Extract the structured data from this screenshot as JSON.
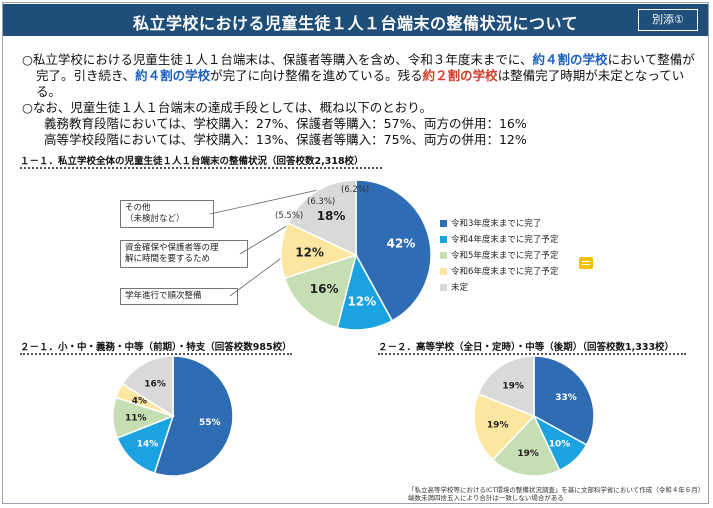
{
  "header": {
    "title": "私立学校における児童生徒１人１台端末の整備状況について",
    "badge": "別添①"
  },
  "summary": {
    "p1_a": "○私立学校における児童生徒１人１台端末は、保護者等購入を含め、令和３年度末までに、",
    "p1_b": "約４割の学校",
    "p1_c": "において整備が",
    "p1_d": "完了。引き続き、",
    "p1_e": "約４割の学校",
    "p1_f": "が完了に向け整備を進めている。残る",
    "p1_g": "約２割の学校",
    "p1_h": "は整備完了時期が未定となっている。",
    "p2": "○なお、児童生徒１人１台端末の達成手段としては、概ね以下のとおり。",
    "p3": "義務教育段階においては、学校購入：27%、保護者等購入：57%、両方の併用：16%",
    "p4": "高等学校段階においては、学校購入：13%、保護者等購入：75%、両方の併用：12%"
  },
  "notes": {
    "n1a": "その他",
    "n1b": "（未検討など）",
    "n2a": "資金確保や保護者等の理",
    "n2b": "解に時間を要するため",
    "n3": "学年進行で順次整備"
  },
  "footnote": {
    "l1": "「私立高等学校等におけるICT環境の整備状況調査」を基に文部科学省において作成（令和４年６月）",
    "l2": "端数未満四捨五入により合計は一致しない場合がある"
  },
  "colors": {
    "header": "#1f4e79",
    "s1": "#2e6db4",
    "s2": "#1aa3e0",
    "s3": "#c6deb4",
    "s4": "#fde7a0",
    "s5": "#d9d9d9"
  },
  "chart_data": [
    {
      "type": "pie",
      "title": "１－１．私立学校全体の児童生徒１人１台端末の整備状況（回答校数2,318校）",
      "categories": [
        "令和3年度末までに完了",
        "令和4年度末までに完了予定",
        "令和5年度末までに完了予定",
        "令和6年度末までに完了予定",
        "未定"
      ],
      "values": [
        42,
        12,
        16,
        12,
        18
      ],
      "labels": [
        "42%",
        "12%",
        "16%",
        "12%",
        "18%"
      ],
      "sub_breakdown": [
        {
          "label": "(5.5%)",
          "value": 5.5
        },
        {
          "label": "(6.3%)",
          "value": 6.3
        },
        {
          "label": "(6.2%)",
          "value": 6.2
        }
      ],
      "legend": "right"
    },
    {
      "type": "pie",
      "title": "２－１．小・中・義務・中等（前期）・特支（回答校数985校）",
      "categories": [
        "令和3年度末までに完了",
        "令和4年度末までに完了予定",
        "令和5年度末までに完了予定",
        "令和6年度末までに完了予定",
        "未定"
      ],
      "values": [
        55,
        14,
        11,
        4,
        16
      ],
      "labels": [
        "55%",
        "14%",
        "11%",
        "4%",
        "16%"
      ]
    },
    {
      "type": "pie",
      "title": "２－２．高等学校（全日・定時）・中等（後期）（回答校数1,333校）",
      "categories": [
        "令和3年度末までに完了",
        "令和4年度末までに完了予定",
        "令和5年度末までに完了予定",
        "令和6年度末までに完了予定",
        "未定"
      ],
      "values": [
        33,
        10,
        19,
        19,
        19
      ],
      "labels": [
        "33%",
        "10%",
        "19%",
        "19%",
        "19%"
      ]
    }
  ]
}
